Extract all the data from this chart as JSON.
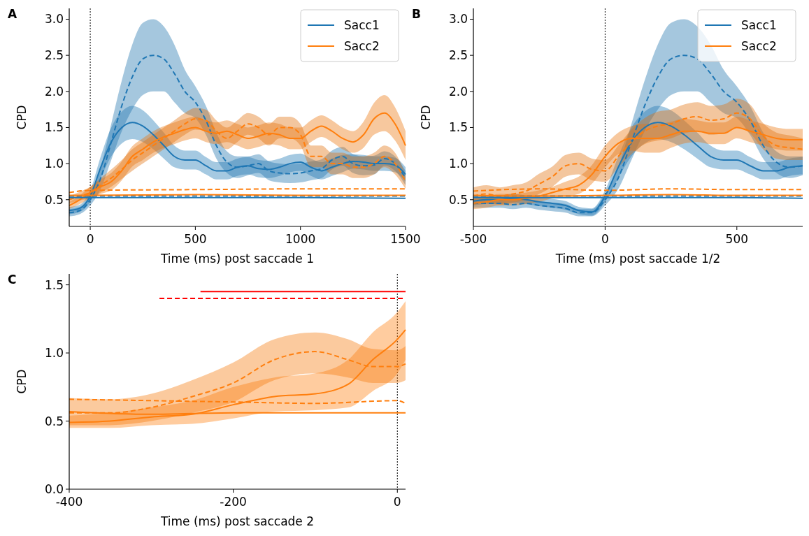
{
  "chart_data": [
    {
      "type": "line",
      "xlabel": "Time (ms) post saccade 1",
      "ylabel": "CPD",
      "annotations": [
        "A"
      ],
      "xlim": [
        -100,
        1500
      ],
      "ylim": [
        0.13,
        3.15
      ],
      "xticks": [
        0,
        500,
        1000,
        1500
      ],
      "yticks": [
        {
          "value": 0.5,
          "label": "0.5"
        },
        {
          "value": 1,
          "label": "1.0"
        },
        {
          "value": 1.5,
          "label": "1.5"
        },
        {
          "value": 2,
          "label": "2.0"
        },
        {
          "value": 2.5,
          "label": "2.5"
        },
        {
          "value": 3,
          "label": "3.0"
        }
      ],
      "legend": "top right",
      "ref_lines": [
        {
          "axis": "x",
          "value": 0,
          "color": "#000000",
          "line_style": "dotted"
        }
      ],
      "series": [
        {
          "name": "Sacc1",
          "color": "#1f77b4",
          "line_style": "solid",
          "x": [
            -100,
            -50,
            0,
            50,
            100,
            150,
            200,
            250,
            300,
            350,
            400,
            450,
            500,
            550,
            600,
            650,
            700,
            750,
            800,
            850,
            900,
            950,
            1000,
            1050,
            1100,
            1150,
            1200,
            1250,
            1300,
            1350,
            1400,
            1450,
            1500
          ],
          "values": [
            0.35,
            0.38,
            0.55,
            0.95,
            1.3,
            1.5,
            1.57,
            1.52,
            1.4,
            1.25,
            1.1,
            1.05,
            1.05,
            0.97,
            0.9,
            0.9,
            0.95,
            0.97,
            0.93,
            0.92,
            0.95,
            1.0,
            1.02,
            0.95,
            0.9,
            0.95,
            1.0,
            1.03,
            1.02,
            1.0,
            1.0,
            0.98,
            0.85
          ],
          "lower": [
            0.3,
            0.33,
            0.47,
            0.8,
            1.1,
            1.28,
            1.34,
            1.3,
            1.2,
            1.07,
            0.95,
            0.92,
            0.92,
            0.85,
            0.78,
            0.78,
            0.83,
            0.85,
            0.81,
            0.8,
            0.83,
            0.88,
            0.9,
            0.83,
            0.78,
            0.83,
            0.88,
            0.93,
            0.92,
            0.9,
            0.9,
            0.88,
            0.75
          ],
          "upper": [
            0.4,
            0.43,
            0.63,
            1.1,
            1.5,
            1.72,
            1.8,
            1.74,
            1.6,
            1.43,
            1.25,
            1.18,
            1.18,
            1.09,
            1.02,
            1.02,
            1.07,
            1.09,
            1.05,
            1.04,
            1.07,
            1.12,
            1.14,
            1.07,
            1.02,
            1.07,
            1.12,
            1.13,
            1.12,
            1.1,
            1.1,
            1.08,
            0.95
          ]
        },
        {
          "color": "#1f77b4",
          "line_style": "dashed",
          "x": [
            -100,
            -50,
            0,
            50,
            100,
            150,
            200,
            250,
            300,
            350,
            400,
            450,
            500,
            550,
            600,
            650,
            700,
            750,
            800,
            850,
            900,
            950,
            1000,
            1050,
            1100,
            1150,
            1200,
            1250,
            1300,
            1350,
            1400,
            1450,
            1500
          ],
          "values": [
            0.32,
            0.35,
            0.5,
            0.8,
            1.3,
            1.8,
            2.2,
            2.45,
            2.5,
            2.45,
            2.25,
            2.0,
            1.85,
            1.6,
            1.25,
            1.02,
            0.95,
            0.97,
            1.0,
            0.9,
            0.87,
            0.86,
            0.87,
            0.9,
            0.93,
            1.05,
            1.1,
            1.0,
            0.97,
            0.98,
            1.07,
            1.0,
            0.8
          ],
          "lower": [
            0.27,
            0.3,
            0.42,
            0.65,
            1.05,
            1.45,
            1.75,
            1.95,
            2.0,
            2.0,
            1.85,
            1.7,
            1.63,
            1.4,
            1.07,
            0.87,
            0.8,
            0.84,
            0.87,
            0.77,
            0.74,
            0.73,
            0.74,
            0.77,
            0.8,
            0.92,
            0.97,
            0.87,
            0.84,
            0.85,
            0.97,
            0.9,
            0.7
          ],
          "upper": [
            0.37,
            0.4,
            0.58,
            0.95,
            1.55,
            2.15,
            2.65,
            2.95,
            3.0,
            2.9,
            2.65,
            2.3,
            2.07,
            1.8,
            1.43,
            1.17,
            1.1,
            1.1,
            1.13,
            1.03,
            1.0,
            0.99,
            1.0,
            1.03,
            1.06,
            1.18,
            1.23,
            1.13,
            1.1,
            1.11,
            1.17,
            1.1,
            0.9
          ]
        },
        {
          "name": "Sacc2",
          "color": "#ff7f0e",
          "line_style": "solid",
          "x": [
            -100,
            -50,
            0,
            50,
            100,
            150,
            200,
            250,
            300,
            350,
            400,
            450,
            500,
            550,
            600,
            650,
            700,
            750,
            800,
            850,
            900,
            950,
            1000,
            1050,
            1100,
            1150,
            1200,
            1250,
            1300,
            1350,
            1400,
            1450,
            1500
          ],
          "values": [
            0.42,
            0.5,
            0.6,
            0.68,
            0.75,
            0.9,
            1.1,
            1.2,
            1.3,
            1.37,
            1.42,
            1.47,
            1.5,
            1.45,
            1.42,
            1.45,
            1.4,
            1.35,
            1.38,
            1.42,
            1.4,
            1.35,
            1.35,
            1.45,
            1.52,
            1.45,
            1.35,
            1.3,
            1.4,
            1.62,
            1.7,
            1.55,
            1.25
          ],
          "lower": [
            0.37,
            0.44,
            0.52,
            0.58,
            0.63,
            0.77,
            0.96,
            1.05,
            1.15,
            1.22,
            1.27,
            1.32,
            1.35,
            1.3,
            1.27,
            1.3,
            1.25,
            1.2,
            1.23,
            1.27,
            1.25,
            1.2,
            1.2,
            1.3,
            1.37,
            1.3,
            1.2,
            1.15,
            1.22,
            1.4,
            1.45,
            1.32,
            1.05
          ],
          "upper": [
            0.47,
            0.56,
            0.68,
            0.78,
            0.87,
            1.03,
            1.24,
            1.35,
            1.45,
            1.52,
            1.57,
            1.62,
            1.65,
            1.6,
            1.57,
            1.6,
            1.55,
            1.5,
            1.53,
            1.57,
            1.55,
            1.5,
            1.5,
            1.6,
            1.67,
            1.6,
            1.5,
            1.45,
            1.58,
            1.84,
            1.95,
            1.78,
            1.45
          ]
        },
        {
          "color": "#ff7f0e",
          "line_style": "dashed",
          "x": [
            -100,
            -50,
            0,
            50,
            100,
            150,
            200,
            250,
            300,
            350,
            400,
            450,
            500,
            550,
            600,
            650,
            700,
            750,
            800,
            850,
            900,
            950,
            1000,
            1050,
            1100,
            1150,
            1200,
            1250,
            1300,
            1350,
            1400,
            1450,
            1500
          ],
          "values": [
            0.5,
            0.55,
            0.6,
            0.7,
            0.8,
            0.92,
            1.05,
            1.15,
            1.25,
            1.35,
            1.45,
            1.55,
            1.62,
            1.6,
            1.45,
            1.35,
            1.45,
            1.55,
            1.5,
            1.4,
            1.5,
            1.5,
            1.4,
            1.1,
            1.1,
            1.0,
            1.0,
            0.95,
            0.95,
            1.0,
            1.1,
            1.0,
            0.75
          ],
          "lower": [
            0.45,
            0.49,
            0.52,
            0.6,
            0.68,
            0.79,
            0.9,
            1.0,
            1.1,
            1.2,
            1.3,
            1.4,
            1.47,
            1.45,
            1.3,
            1.2,
            1.3,
            1.4,
            1.35,
            1.25,
            1.35,
            1.35,
            1.25,
            0.95,
            0.95,
            0.85,
            0.85,
            0.8,
            0.8,
            0.85,
            0.95,
            0.85,
            0.65
          ],
          "upper": [
            0.55,
            0.61,
            0.68,
            0.8,
            0.92,
            1.05,
            1.2,
            1.3,
            1.4,
            1.5,
            1.6,
            1.7,
            1.77,
            1.75,
            1.6,
            1.5,
            1.6,
            1.7,
            1.65,
            1.55,
            1.65,
            1.65,
            1.55,
            1.25,
            1.25,
            1.15,
            1.15,
            1.1,
            1.1,
            1.15,
            1.25,
            1.15,
            0.85
          ]
        },
        {
          "color": "#1f77b4",
          "line_style": "solid",
          "x": [
            -100,
            0,
            500,
            1000,
            1500
          ],
          "values": [
            0.53,
            0.53,
            0.53,
            0.53,
            0.52
          ]
        },
        {
          "color": "#1f77b4",
          "line_style": "dashed",
          "x": [
            -100,
            0,
            500,
            1000,
            1500
          ],
          "values": [
            0.55,
            0.55,
            0.55,
            0.55,
            0.55
          ]
        },
        {
          "color": "#ff7f0e",
          "line_style": "solid",
          "x": [
            -100,
            0,
            500,
            1000,
            1500
          ],
          "values": [
            0.56,
            0.56,
            0.57,
            0.56,
            0.56
          ]
        },
        {
          "color": "#ff7f0e",
          "line_style": "dashed",
          "x": [
            -100,
            0,
            500,
            1000,
            1500
          ],
          "values": [
            0.6,
            0.63,
            0.64,
            0.65,
            0.65
          ]
        }
      ]
    },
    {
      "type": "line",
      "xlabel": "Time (ms) post saccade 1/2",
      "ylabel": "CPD",
      "annotations": [
        "B"
      ],
      "xlim": [
        -500,
        750
      ],
      "ylim": [
        0.13,
        3.15
      ],
      "xticks": [
        -500,
        0,
        500
      ],
      "yticks": [
        {
          "value": 0.5,
          "label": "0.5"
        },
        {
          "value": 1,
          "label": "1.0"
        },
        {
          "value": 1.5,
          "label": "1.5"
        },
        {
          "value": 2,
          "label": "2.0"
        },
        {
          "value": 2.5,
          "label": "2.5"
        },
        {
          "value": 3,
          "label": "3.0"
        }
      ],
      "legend": "top right",
      "ref_lines": [
        {
          "axis": "x",
          "value": 0,
          "color": "#000000",
          "line_style": "dotted"
        }
      ],
      "series": [
        {
          "name": "Sacc1",
          "color": "#1f77b4",
          "line_style": "solid",
          "x": [
            -500,
            -450,
            -400,
            -350,
            -300,
            -250,
            -200,
            -150,
            -100,
            -50,
            0,
            50,
            100,
            150,
            200,
            250,
            300,
            350,
            400,
            450,
            500,
            550,
            600,
            650,
            700,
            750
          ],
          "values": [
            0.48,
            0.5,
            0.5,
            0.52,
            0.5,
            0.47,
            0.45,
            0.42,
            0.35,
            0.33,
            0.55,
            0.95,
            1.3,
            1.5,
            1.57,
            1.52,
            1.4,
            1.25,
            1.1,
            1.05,
            1.05,
            0.97,
            0.9,
            0.9,
            0.95,
            0.97
          ],
          "lower": [
            0.42,
            0.44,
            0.44,
            0.46,
            0.44,
            0.41,
            0.39,
            0.36,
            0.3,
            0.28,
            0.47,
            0.8,
            1.1,
            1.28,
            1.34,
            1.3,
            1.2,
            1.07,
            0.95,
            0.92,
            0.92,
            0.85,
            0.78,
            0.78,
            0.83,
            0.85
          ],
          "upper": [
            0.54,
            0.56,
            0.56,
            0.58,
            0.56,
            0.53,
            0.51,
            0.48,
            0.4,
            0.38,
            0.63,
            1.1,
            1.5,
            1.72,
            1.8,
            1.74,
            1.6,
            1.43,
            1.25,
            1.18,
            1.18,
            1.09,
            1.02,
            1.02,
            1.07,
            1.09
          ]
        },
        {
          "color": "#1f77b4",
          "line_style": "dashed",
          "x": [
            -500,
            -450,
            -400,
            -350,
            -300,
            -250,
            -200,
            -150,
            -100,
            -50,
            0,
            50,
            100,
            150,
            200,
            250,
            300,
            350,
            400,
            450,
            500,
            550,
            600,
            650,
            700,
            750
          ],
          "values": [
            0.45,
            0.45,
            0.45,
            0.43,
            0.45,
            0.42,
            0.4,
            0.38,
            0.32,
            0.32,
            0.5,
            0.8,
            1.3,
            1.8,
            2.2,
            2.45,
            2.5,
            2.45,
            2.25,
            2.0,
            1.85,
            1.6,
            1.25,
            1.02,
            0.95,
            0.97
          ],
          "lower": [
            0.39,
            0.39,
            0.39,
            0.37,
            0.39,
            0.36,
            0.34,
            0.32,
            0.27,
            0.27,
            0.42,
            0.65,
            1.05,
            1.45,
            1.75,
            1.95,
            2.0,
            2.0,
            1.85,
            1.7,
            1.63,
            1.4,
            1.07,
            0.87,
            0.8,
            0.84
          ],
          "upper": [
            0.51,
            0.51,
            0.51,
            0.49,
            0.51,
            0.48,
            0.46,
            0.44,
            0.37,
            0.37,
            0.58,
            0.95,
            1.55,
            2.15,
            2.65,
            2.95,
            3.0,
            2.9,
            2.65,
            2.3,
            2.07,
            1.8,
            1.43,
            1.17,
            1.1,
            1.1
          ]
        },
        {
          "name": "Sacc2",
          "color": "#ff7f0e",
          "line_style": "solid",
          "x": [
            -500,
            -450,
            -400,
            -350,
            -300,
            -250,
            -200,
            -150,
            -100,
            -50,
            0,
            50,
            100,
            150,
            200,
            250,
            300,
            350,
            400,
            450,
            500,
            550,
            600,
            650,
            700,
            750
          ],
          "values": [
            0.45,
            0.47,
            0.5,
            0.5,
            0.52,
            0.55,
            0.6,
            0.65,
            0.7,
            0.85,
            1.1,
            1.28,
            1.35,
            1.35,
            1.35,
            1.4,
            1.45,
            1.45,
            1.42,
            1.42,
            1.5,
            1.45,
            1.4,
            1.35,
            1.33,
            1.33
          ],
          "lower": [
            0.37,
            0.39,
            0.42,
            0.42,
            0.44,
            0.47,
            0.52,
            0.55,
            0.58,
            0.72,
            0.95,
            1.13,
            1.18,
            1.15,
            1.15,
            1.22,
            1.28,
            1.3,
            1.27,
            1.27,
            1.35,
            1.3,
            1.25,
            1.2,
            1.18,
            1.18
          ],
          "upper": [
            0.53,
            0.55,
            0.58,
            0.58,
            0.6,
            0.63,
            0.68,
            0.75,
            0.82,
            0.98,
            1.25,
            1.43,
            1.52,
            1.55,
            1.55,
            1.58,
            1.62,
            1.6,
            1.57,
            1.57,
            1.65,
            1.6,
            1.55,
            1.5,
            1.48,
            1.48
          ]
        },
        {
          "color": "#ff7f0e",
          "line_style": "dashed",
          "x": [
            -500,
            -450,
            -400,
            -350,
            -300,
            -250,
            -200,
            -150,
            -100,
            -50,
            0,
            50,
            100,
            150,
            200,
            250,
            300,
            350,
            400,
            450,
            500,
            550,
            600,
            650,
            700,
            750
          ],
          "values": [
            0.55,
            0.58,
            0.55,
            0.58,
            0.62,
            0.72,
            0.82,
            0.97,
            1.0,
            0.92,
            0.9,
            1.1,
            1.3,
            1.45,
            1.52,
            1.55,
            1.62,
            1.65,
            1.6,
            1.62,
            1.7,
            1.62,
            1.38,
            1.25,
            1.22,
            1.2
          ],
          "lower": [
            0.43,
            0.46,
            0.43,
            0.46,
            0.5,
            0.58,
            0.68,
            0.82,
            0.85,
            0.77,
            0.75,
            0.95,
            1.13,
            1.27,
            1.32,
            1.35,
            1.42,
            1.45,
            1.4,
            1.42,
            1.5,
            1.42,
            1.2,
            1.07,
            1.05,
            1.05
          ],
          "upper": [
            0.67,
            0.7,
            0.67,
            0.7,
            0.74,
            0.86,
            0.96,
            1.12,
            1.15,
            1.07,
            1.05,
            1.25,
            1.47,
            1.63,
            1.72,
            1.75,
            1.82,
            1.85,
            1.8,
            1.82,
            1.9,
            1.82,
            1.56,
            1.43,
            1.39,
            1.35
          ]
        },
        {
          "color": "#1f77b4",
          "line_style": "solid",
          "x": [
            -500,
            -250,
            0,
            250,
            500,
            750
          ],
          "values": [
            0.53,
            0.53,
            0.53,
            0.53,
            0.53,
            0.52
          ]
        },
        {
          "color": "#1f77b4",
          "line_style": "dashed",
          "x": [
            -500,
            -250,
            0,
            250,
            500,
            750
          ],
          "values": [
            0.55,
            0.55,
            0.55,
            0.55,
            0.55,
            0.55
          ]
        },
        {
          "color": "#ff7f0e",
          "line_style": "solid",
          "x": [
            -500,
            -250,
            0,
            250,
            500,
            750
          ],
          "values": [
            0.56,
            0.55,
            0.56,
            0.57,
            0.56,
            0.56
          ]
        },
        {
          "color": "#ff7f0e",
          "line_style": "dashed",
          "x": [
            -500,
            -250,
            0,
            250,
            500,
            750
          ],
          "values": [
            0.62,
            0.65,
            0.63,
            0.65,
            0.64,
            0.64
          ]
        }
      ]
    },
    {
      "type": "line",
      "xlabel": "Time (ms) post saccade 2",
      "ylabel": "CPD",
      "annotations": [
        "C"
      ],
      "xlim": [
        -400,
        10
      ],
      "ylim": [
        0,
        1.58
      ],
      "xticks": [
        -400,
        -200,
        0
      ],
      "yticks": [
        {
          "value": 0,
          "label": "0.0"
        },
        {
          "value": 0.5,
          "label": "0.5"
        },
        {
          "value": 1,
          "label": "1.0"
        },
        {
          "value": 1.5,
          "label": "1.5"
        }
      ],
      "ref_lines": [
        {
          "axis": "x",
          "value": 0,
          "color": "#000000",
          "line_style": "dotted"
        }
      ],
      "series": [
        {
          "color": "#ff7f0e",
          "line_style": "solid",
          "x": [
            -400,
            -350,
            -300,
            -250,
            -200,
            -150,
            -100,
            -60,
            -30,
            0,
            10
          ],
          "values": [
            0.49,
            0.5,
            0.53,
            0.55,
            0.62,
            0.68,
            0.7,
            0.77,
            0.95,
            1.1,
            1.17
          ],
          "lower": [
            0.45,
            0.45,
            0.47,
            0.48,
            0.52,
            0.57,
            0.58,
            0.6,
            0.72,
            0.85,
            0.95
          ],
          "upper": [
            0.54,
            0.56,
            0.6,
            0.65,
            0.75,
            0.82,
            0.85,
            0.95,
            1.15,
            1.3,
            1.38
          ]
        },
        {
          "color": "#ff7f0e",
          "line_style": "dashed",
          "x": [
            -400,
            -350,
            -300,
            -250,
            -200,
            -150,
            -100,
            -60,
            -30,
            0,
            10
          ],
          "values": [
            0.56,
            0.56,
            0.6,
            0.68,
            0.78,
            0.95,
            1.01,
            0.95,
            0.9,
            0.9,
            0.92
          ],
          "lower": [
            0.47,
            0.47,
            0.5,
            0.56,
            0.64,
            0.8,
            0.85,
            0.82,
            0.78,
            0.78,
            0.8
          ],
          "upper": [
            0.67,
            0.66,
            0.7,
            0.8,
            0.93,
            1.1,
            1.15,
            1.1,
            1.03,
            1.02,
            1.05
          ]
        },
        {
          "color": "#ff7f0e",
          "line_style": "solid",
          "x": [
            -400,
            -300,
            -200,
            -100,
            0,
            10
          ],
          "values": [
            0.57,
            0.55,
            0.56,
            0.56,
            0.56,
            0.56
          ]
        },
        {
          "color": "#ff7f0e",
          "line_style": "dashed",
          "x": [
            -400,
            -300,
            -200,
            -100,
            0,
            10
          ],
          "values": [
            0.66,
            0.65,
            0.64,
            0.63,
            0.65,
            0.63
          ]
        },
        {
          "color": "#ff0000",
          "line_style": "solid",
          "x": [
            -240,
            10
          ],
          "values": [
            1.45,
            1.45
          ]
        },
        {
          "color": "#ff0000",
          "line_style": "dashed",
          "x": [
            -290,
            10
          ],
          "values": [
            1.4,
            1.4
          ]
        }
      ]
    }
  ]
}
